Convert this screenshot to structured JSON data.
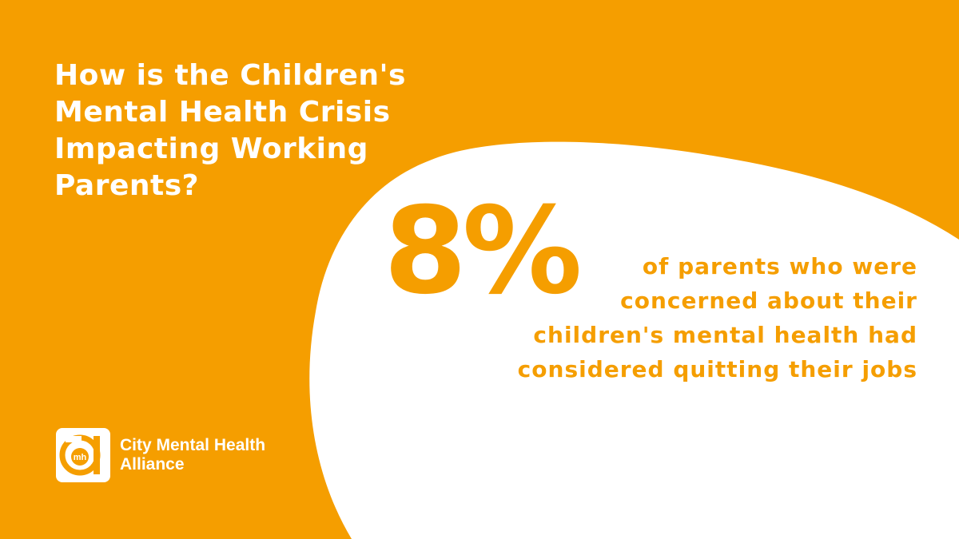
{
  "colors": {
    "background": "#F59E00",
    "accent": "#F59E00",
    "blob": "#FFFFFF",
    "text_on_orange": "#FFFFFF"
  },
  "headline": {
    "lines": [
      "How is the Children's",
      "Mental Health Crisis",
      "Impacting Working",
      "Parents?"
    ]
  },
  "statistic": {
    "value": "8%",
    "description_lines": [
      "of parents who were",
      "concerned about their",
      "children's mental health had",
      "considered quitting their jobs"
    ]
  },
  "brand": {
    "logo_icon": "cmha-logo-icon",
    "logo_letters": "mh",
    "name_lines": [
      "City Mental Health",
      "Alliance"
    ]
  }
}
